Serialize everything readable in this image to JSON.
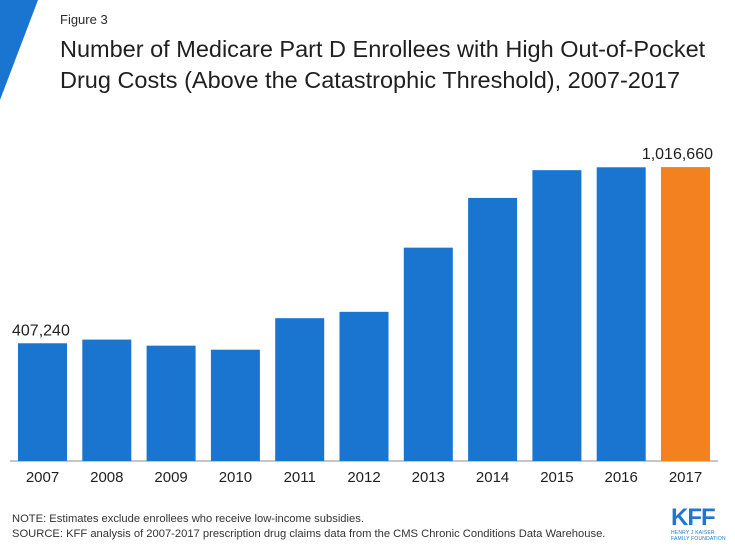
{
  "figure_label": "Figure 3",
  "title": "Number of Medicare Part D Enrollees with High Out-of-Pocket Drug Costs (Above the Catastrophic Threshold), 2007-2017",
  "colors": {
    "bar": "#1a75d1",
    "highlight": "#f48120",
    "accent_triangle": "#1a75d1",
    "logo": "#1e77d2"
  },
  "chart_data": {
    "type": "bar",
    "categories": [
      "2007",
      "2008",
      "2009",
      "2010",
      "2011",
      "2012",
      "2013",
      "2014",
      "2015",
      "2016",
      "2017"
    ],
    "values": [
      407240,
      420000,
      399000,
      385000,
      494000,
      516000,
      738000,
      910000,
      1006000,
      1016000,
      1016660
    ],
    "data_labels": [
      {
        "index": 0,
        "text": "407,240"
      },
      {
        "index": 10,
        "text": "1,016,660"
      }
    ],
    "highlight_index": 10,
    "ylim": [
      0,
      1100000
    ],
    "grid": false,
    "xlabel": "",
    "ylabel": ""
  },
  "notes": {
    "note": "NOTE: Estimates exclude enrollees who receive low-income subsidies.",
    "source": "SOURCE: KFF analysis of 2007-2017 prescription drug claims data from the CMS Chronic Conditions Data Warehouse."
  },
  "logo": {
    "main": "KFF",
    "sub_line1": "HENRY J KAISER",
    "sub_line2": "FAMILY FOUNDATION"
  }
}
